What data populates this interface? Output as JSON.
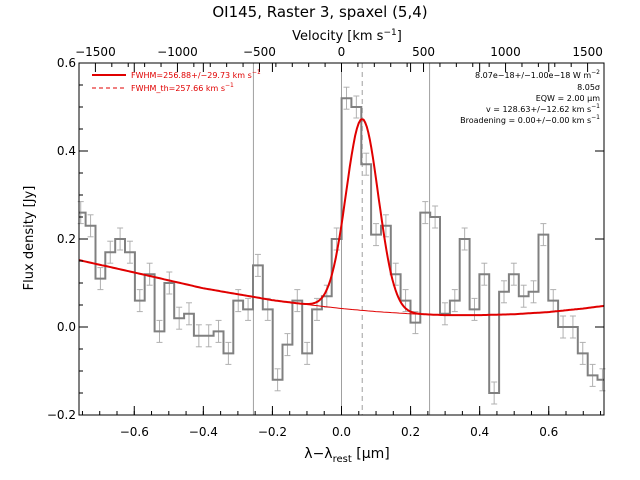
{
  "chart_data": {
    "type": "line",
    "title": "OI145, Raster 3, spaxel (5,4)",
    "xlabel": "λ−λ",
    "xlabel_sub": "rest",
    "xlabel_unit": " [μm]",
    "ylabel": "Flux density [Jy]",
    "top_axis_label": "Velocity [km s",
    "top_axis_label_sup": "−1",
    "top_axis_label_end": "]",
    "xlim": [
      -0.76,
      0.76
    ],
    "ylim": [
      -0.2,
      0.6
    ],
    "top_xlim": [
      -1600,
      1600
    ],
    "x_ticks": [
      {
        "v": -0.6,
        "label": "−0.6"
      },
      {
        "v": -0.4,
        "label": "−0.4"
      },
      {
        "v": -0.2,
        "label": "−0.2"
      },
      {
        "v": 0.0,
        "label": "0.0"
      },
      {
        "v": 0.2,
        "label": "0.2"
      },
      {
        "v": 0.4,
        "label": "0.4"
      },
      {
        "v": 0.6,
        "label": "0.6"
      }
    ],
    "y_ticks": [
      {
        "v": -0.2,
        "label": "−0.2"
      },
      {
        "v": 0.0,
        "label": "0.0"
      },
      {
        "v": 0.2,
        "label": "0.2"
      },
      {
        "v": 0.4,
        "label": "0.4"
      },
      {
        "v": 0.6,
        "label": "0.6"
      }
    ],
    "top_ticks": [
      {
        "v": -1500,
        "label": "−1500"
      },
      {
        "v": -1000,
        "label": "−1000"
      },
      {
        "v": -500,
        "label": "−500"
      },
      {
        "v": 0,
        "label": "0"
      },
      {
        "v": 500,
        "label": "500"
      },
      {
        "v": 1000,
        "label": "1000"
      },
      {
        "v": 1500,
        "label": "1500"
      }
    ],
    "vlines_solid": [
      -0.255,
      0.0,
      0.255
    ],
    "vline_dashed": 0.06,
    "spectrum": {
      "bin_width": 0.0285,
      "x": [
        -0.755,
        -0.7265,
        -0.698,
        -0.6695,
        -0.641,
        -0.6125,
        -0.584,
        -0.5555,
        -0.527,
        -0.4985,
        -0.47,
        -0.4415,
        -0.413,
        -0.3845,
        -0.356,
        -0.3275,
        -0.299,
        -0.2705,
        -0.242,
        -0.2135,
        -0.185,
        -0.1565,
        -0.128,
        -0.0995,
        -0.071,
        -0.0425,
        -0.014,
        0.0145,
        0.043,
        0.0715,
        0.1,
        0.1285,
        0.157,
        0.1855,
        0.214,
        0.2425,
        0.271,
        0.2995,
        0.328,
        0.3565,
        0.385,
        0.4135,
        0.442,
        0.4705,
        0.499,
        0.5275,
        0.556,
        0.5845,
        0.613,
        0.6415,
        0.67,
        0.6985,
        0.727,
        0.7555
      ],
      "y": [
        0.26,
        0.23,
        0.11,
        0.17,
        0.2,
        0.17,
        0.06,
        0.12,
        -0.01,
        0.1,
        0.02,
        0.03,
        -0.02,
        -0.02,
        -0.01,
        -0.06,
        0.06,
        0.04,
        0.14,
        0.04,
        -0.12,
        -0.04,
        0.06,
        -0.06,
        0.04,
        0.07,
        0.2,
        0.52,
        0.5,
        0.37,
        0.21,
        0.23,
        0.12,
        0.06,
        0.01,
        0.26,
        0.25,
        0.03,
        0.06,
        0.2,
        0.04,
        0.12,
        -0.15,
        0.08,
        0.12,
        0.07,
        0.08,
        0.21,
        0.06,
        0.0,
        0.0,
        -0.06,
        -0.11,
        -0.12
      ],
      "err": 0.025
    },
    "continuum": {
      "x": [
        -0.76,
        -0.6,
        -0.4,
        -0.2,
        -0.1,
        0.0,
        0.1,
        0.2,
        0.3,
        0.4,
        0.5,
        0.6,
        0.7,
        0.76
      ],
      "y": [
        0.152,
        0.124,
        0.088,
        0.061,
        0.051,
        0.042,
        0.035,
        0.03,
        0.027,
        0.027,
        0.029,
        0.034,
        0.042,
        0.048
      ]
    },
    "gaussian_fit": {
      "center": 0.06,
      "amplitude": 0.435,
      "fwhm": 0.11
    },
    "legend": [
      {
        "label": "FWHM=256.88+/−29.73 km s",
        "sup": "−1",
        "style": "solid"
      },
      {
        "label": "FWHM_th=257.66 km s",
        "sup": "−1",
        "style": "dashed"
      }
    ],
    "legend_position": "top-left",
    "annotations": [
      {
        "text": "8.07e−18+/−1.00e−18 W m",
        "sup": "−2"
      },
      {
        "text": "8.05σ",
        "sup": ""
      },
      {
        "text": "EQW = 2.00 μm",
        "sup": ""
      },
      {
        "text": "v = 128.63+/−12.62 km s",
        "sup": "−1"
      },
      {
        "text": "Broadening = 0.00+/−0.00 km s",
        "sup": "−1"
      }
    ],
    "colors": {
      "spectrum": "#808080",
      "errorbar": "#b0b0b0",
      "fit": "#e00000",
      "vline": "#a0a0a0"
    }
  }
}
